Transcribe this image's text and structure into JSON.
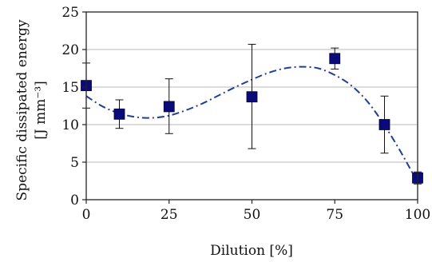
{
  "chart_data": {
    "type": "scatter",
    "xlabel": "Dilution [%]",
    "ylabel_line1": "Specific dissipated energy",
    "ylabel_line2": "[J mm⁻³]",
    "xlim": [
      0,
      100
    ],
    "ylim": [
      0,
      25
    ],
    "x_ticks": [
      0,
      25,
      50,
      75,
      100
    ],
    "y_ticks": [
      0,
      5,
      10,
      15,
      20,
      25
    ],
    "grid": "horizontal",
    "marker_color": "#0a0a7a",
    "trend_color": "#1f3f99",
    "points": [
      {
        "x": 0,
        "y": 15.2,
        "err_low": 12.2,
        "err_high": 18.2
      },
      {
        "x": 10,
        "y": 11.4,
        "err_low": 9.5,
        "err_high": 13.3
      },
      {
        "x": 25,
        "y": 12.4,
        "err_low": 8.8,
        "err_high": 16.1
      },
      {
        "x": 50,
        "y": 13.7,
        "err_low": 6.8,
        "err_high": 20.7
      },
      {
        "x": 75,
        "y": 18.8,
        "err_low": 17.4,
        "err_high": 20.2
      },
      {
        "x": 90,
        "y": 10.0,
        "err_low": 6.2,
        "err_high": 13.8
      },
      {
        "x": 100,
        "y": 2.9,
        "err_low": 2.1,
        "err_high": 3.7
      }
    ],
    "trend_line": {
      "style": "dash-dot",
      "x": [
        0,
        5,
        10,
        15,
        20,
        25,
        30,
        35,
        40,
        45,
        50,
        55,
        60,
        65,
        70,
        75,
        80,
        85,
        90,
        95,
        100
      ],
      "y": [
        13.8,
        12.4,
        11.5,
        11.0,
        10.9,
        11.2,
        11.9,
        12.8,
        13.9,
        15.0,
        16.0,
        16.9,
        17.5,
        17.7,
        17.5,
        16.6,
        15.2,
        13.0,
        9.9,
        6.3,
        2.3
      ]
    }
  }
}
